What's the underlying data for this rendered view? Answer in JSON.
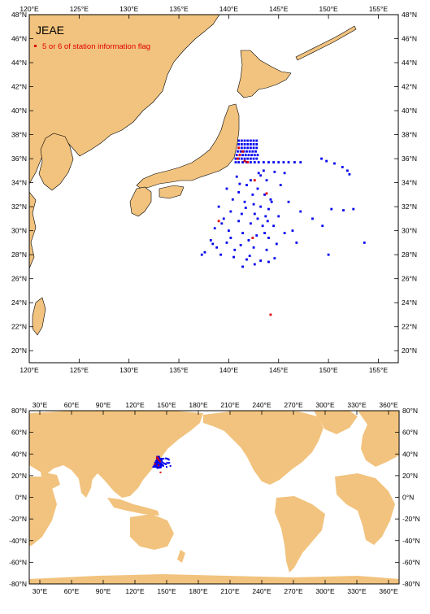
{
  "colors": {
    "land": "#f2c37e",
    "water": "#ffffff",
    "frame": "#000000",
    "station": "#0000ee",
    "flagged": "#e00000"
  },
  "top_map": {
    "title": "JEAE",
    "legend_label": "5 or 6 of station information flag",
    "lon_range": [
      120,
      157
    ],
    "lat_range": [
      19,
      48
    ],
    "lon_ticks": [
      "120°E",
      "125°E",
      "130°E",
      "135°E",
      "140°E",
      "145°E",
      "150°E",
      "155°E"
    ],
    "lat_ticks": [
      "20°N",
      "22°N",
      "24°N",
      "26°N",
      "28°N",
      "30°N",
      "32°N",
      "34°N",
      "36°N",
      "38°N",
      "40°N",
      "42°N",
      "44°N",
      "46°N",
      "48°N"
    ]
  },
  "bottom_map": {
    "lon_range": [
      20,
      370
    ],
    "lat_range": [
      -80,
      80
    ],
    "lon_ticks": [
      "30°E",
      "60°E",
      "90°E",
      "120°E",
      "150°E",
      "180°E",
      "210°E",
      "240°E",
      "270°E",
      "300°E",
      "330°E",
      "360°E"
    ],
    "lat_ticks": [
      "80°N",
      "60°N",
      "40°N",
      "20°N",
      "0°N",
      "-20°N",
      "-40°N",
      "-60°N",
      "-80°N"
    ]
  },
  "chart_data": {
    "type": "scatter",
    "xlabel": "",
    "ylabel": "",
    "series": [
      {
        "name": "",
        "points": [
          [
            141.0,
            37.5
          ],
          [
            141.3,
            37.5
          ],
          [
            141.6,
            37.5
          ],
          [
            141.9,
            37.5
          ],
          [
            142.2,
            37.5
          ],
          [
            142.5,
            37.5
          ],
          [
            142.8,
            37.5
          ],
          [
            141.0,
            37.2
          ],
          [
            141.3,
            37.2
          ],
          [
            141.6,
            37.2
          ],
          [
            141.9,
            37.2
          ],
          [
            142.2,
            37.2
          ],
          [
            142.5,
            37.2
          ],
          [
            142.8,
            37.2
          ],
          [
            141.0,
            36.9
          ],
          [
            141.3,
            36.9
          ],
          [
            141.6,
            36.9
          ],
          [
            141.9,
            36.9
          ],
          [
            142.2,
            36.9
          ],
          [
            142.5,
            36.9
          ],
          [
            142.8,
            36.9
          ],
          [
            140.9,
            36.6
          ],
          [
            141.2,
            36.6
          ],
          [
            141.5,
            36.6
          ],
          [
            141.8,
            36.6
          ],
          [
            142.1,
            36.6
          ],
          [
            142.4,
            36.6
          ],
          [
            142.7,
            36.6
          ],
          [
            140.8,
            36.3
          ],
          [
            141.1,
            36.3
          ],
          [
            141.4,
            36.3
          ],
          [
            141.7,
            36.3
          ],
          [
            142.0,
            36.3
          ],
          [
            142.3,
            36.3
          ],
          [
            142.6,
            36.3
          ],
          [
            142.9,
            36.3
          ],
          [
            140.7,
            36.0
          ],
          [
            141.0,
            36.0
          ],
          [
            141.3,
            36.0
          ],
          [
            141.6,
            36.0
          ],
          [
            141.9,
            36.0
          ],
          [
            142.2,
            36.0
          ],
          [
            142.5,
            36.0
          ],
          [
            142.8,
            36.0
          ],
          [
            140.7,
            35.7
          ],
          [
            141.0,
            35.7
          ],
          [
            141.4,
            35.7
          ],
          [
            141.8,
            35.7
          ],
          [
            142.2,
            35.7
          ],
          [
            142.6,
            35.7
          ],
          [
            143.0,
            35.7
          ],
          [
            143.5,
            35.7
          ],
          [
            144.0,
            35.7
          ],
          [
            144.5,
            35.7
          ],
          [
            145.0,
            35.7
          ],
          [
            145.5,
            35.7
          ],
          [
            146.0,
            35.7
          ],
          [
            146.6,
            35.7
          ],
          [
            147.2,
            35.7
          ],
          [
            149.3,
            36.0
          ],
          [
            149.8,
            35.8
          ],
          [
            150.6,
            35.6
          ],
          [
            151.4,
            35.3
          ],
          [
            151.9,
            35.0
          ],
          [
            152.1,
            34.7
          ],
          [
            143.5,
            35.0
          ],
          [
            143.2,
            34.6
          ],
          [
            143.8,
            34.2
          ],
          [
            142.2,
            34.2
          ],
          [
            141.8,
            33.8
          ],
          [
            142.9,
            33.5
          ],
          [
            141.0,
            33.2
          ],
          [
            143.6,
            33.0
          ],
          [
            144.2,
            32.6
          ],
          [
            140.4,
            32.6
          ],
          [
            141.6,
            32.4
          ],
          [
            142.5,
            32.2
          ],
          [
            143.2,
            32.0
          ],
          [
            144.0,
            31.8
          ],
          [
            140.2,
            31.6
          ],
          [
            141.3,
            31.4
          ],
          [
            142.6,
            31.4
          ],
          [
            143.7,
            31.2
          ],
          [
            139.5,
            31.0
          ],
          [
            141.0,
            30.8
          ],
          [
            142.2,
            30.6
          ],
          [
            143.4,
            30.4
          ],
          [
            144.5,
            30.4
          ],
          [
            138.6,
            30.2
          ],
          [
            140.0,
            30.0
          ],
          [
            141.4,
            29.8
          ],
          [
            142.8,
            29.6
          ],
          [
            144.0,
            29.4
          ],
          [
            138.2,
            29.2
          ],
          [
            139.8,
            29.0
          ],
          [
            141.2,
            28.8
          ],
          [
            142.5,
            28.6
          ],
          [
            143.8,
            28.4
          ],
          [
            137.6,
            28.2
          ],
          [
            139.2,
            28.0
          ],
          [
            140.5,
            27.8
          ],
          [
            141.8,
            27.6
          ],
          [
            143.2,
            27.5
          ],
          [
            144.0,
            27.4
          ],
          [
            142.6,
            27.2
          ],
          [
            141.4,
            27.0
          ],
          [
            145.2,
            33.8
          ],
          [
            146.0,
            32.4
          ],
          [
            147.2,
            31.6
          ],
          [
            148.4,
            31.0
          ],
          [
            149.4,
            30.4
          ],
          [
            150.3,
            31.8
          ],
          [
            151.5,
            31.7
          ],
          [
            152.5,
            31.8
          ],
          [
            153.6,
            29.0
          ],
          [
            150.0,
            28.0
          ],
          [
            145.6,
            34.8
          ],
          [
            145.0,
            31.2
          ],
          [
            146.4,
            30.0
          ],
          [
            139.8,
            33.5
          ],
          [
            140.8,
            34.5
          ],
          [
            143.0,
            34.8
          ],
          [
            144.6,
            34.9
          ],
          [
            139.0,
            32.0
          ],
          [
            140.6,
            28.4
          ],
          [
            142.0,
            29.2
          ],
          [
            143.6,
            29.8
          ],
          [
            144.8,
            28.9
          ],
          [
            145.6,
            29.8
          ],
          [
            138.8,
            28.6
          ],
          [
            140.2,
            29.4
          ],
          [
            141.7,
            31.9
          ],
          [
            142.9,
            31.0
          ],
          [
            144.3,
            32.4
          ],
          [
            142.4,
            33.0
          ],
          [
            141.1,
            33.9
          ],
          [
            143.9,
            30.8
          ],
          [
            142.1,
            27.9
          ],
          [
            144.6,
            27.7
          ],
          [
            146.8,
            29.0
          ],
          [
            139.3,
            30.6
          ],
          [
            137.3,
            28.0
          ],
          [
            138.4,
            28.9
          ]
        ]
      },
      {
        "name": "5 or 6 of station information flag",
        "points": [
          [
            141.0,
            36.9
          ],
          [
            141.4,
            36.6
          ],
          [
            141.1,
            36.3
          ],
          [
            140.9,
            36.0
          ],
          [
            141.6,
            35.8
          ],
          [
            141.9,
            35.7
          ],
          [
            142.6,
            34.2
          ],
          [
            143.8,
            33.1
          ],
          [
            139.0,
            30.8
          ],
          [
            142.4,
            29.4
          ],
          [
            144.2,
            23.0
          ]
        ]
      }
    ]
  }
}
